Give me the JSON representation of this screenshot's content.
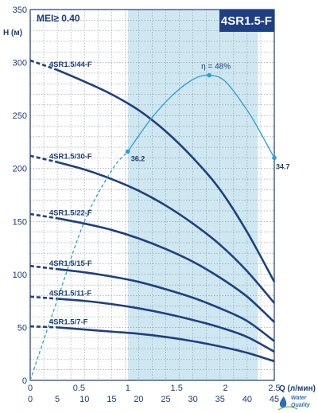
{
  "chart_data": {
    "type": "line",
    "title": "4SR1.5-F",
    "subtitle": "MEI≥ 0.40",
    "ylabel": "H (м)",
    "xlabel": "Q (л/мин)",
    "xlim": [
      0,
      45
    ],
    "ylim": [
      0,
      350
    ],
    "x_ticks_primary": [
      0,
      5,
      10,
      15,
      20,
      25,
      30,
      35,
      40,
      45
    ],
    "x_ticks_secondary": [
      "0",
      "0.5",
      "1",
      "1.5",
      "2",
      "2.5"
    ],
    "y_ticks": [
      0,
      50,
      100,
      150,
      200,
      250,
      300,
      350
    ],
    "grid": true,
    "highlight_range_x": [
      18,
      42
    ],
    "series": [
      {
        "name": "4SR1.5/44-F",
        "x": [
          0,
          5,
          10,
          15,
          20,
          25,
          30,
          35,
          40,
          45
        ],
        "y": [
          302,
          293,
          282,
          270,
          255,
          235,
          210,
          180,
          140,
          93
        ]
      },
      {
        "name": "4SR1.5/30-F",
        "x": [
          0,
          5,
          10,
          15,
          20,
          25,
          30,
          35,
          40,
          45
        ],
        "y": [
          212,
          206,
          199,
          190,
          179,
          165,
          148,
          128,
          103,
          73
        ]
      },
      {
        "name": "4SR1.5/22-F",
        "x": [
          0,
          5,
          10,
          15,
          20,
          25,
          30,
          35,
          40,
          45
        ],
        "y": [
          157,
          153,
          148,
          142,
          134,
          124,
          112,
          97,
          79,
          55
        ]
      },
      {
        "name": "4SR1.5/15-F",
        "x": [
          0,
          5,
          10,
          15,
          20,
          25,
          30,
          35,
          40,
          45
        ],
        "y": [
          108,
          105,
          102,
          98,
          93,
          86,
          78,
          68,
          56,
          37
        ]
      },
      {
        "name": "4SR1.5/11-F",
        "x": [
          0,
          5,
          10,
          15,
          20,
          25,
          30,
          35,
          40,
          45
        ],
        "y": [
          79,
          77,
          75,
          72,
          68,
          63,
          57,
          50,
          41,
          27
        ]
      },
      {
        "name": "4SR1.5/7-F",
        "x": [
          0,
          5,
          10,
          15,
          20,
          25,
          30,
          35,
          40,
          45
        ],
        "y": [
          51,
          50,
          48,
          46,
          44,
          41,
          37,
          32,
          26,
          18
        ]
      },
      {
        "name": "η",
        "x": [
          0,
          5,
          10,
          15,
          18,
          22,
          26,
          30,
          33,
          36,
          40,
          42,
          45
        ],
        "y": [
          0,
          76,
          150,
          198,
          216,
          245,
          268,
          284,
          288,
          282,
          255,
          238,
          210
        ]
      }
    ],
    "annotations": [
      {
        "text": "η = 48%",
        "x": 33,
        "y": 288
      },
      {
        "text": "36.2",
        "x": 18,
        "y": 216
      },
      {
        "text": "34.7",
        "x": 45,
        "y": 210
      }
    ],
    "logo": "Water Quality"
  }
}
